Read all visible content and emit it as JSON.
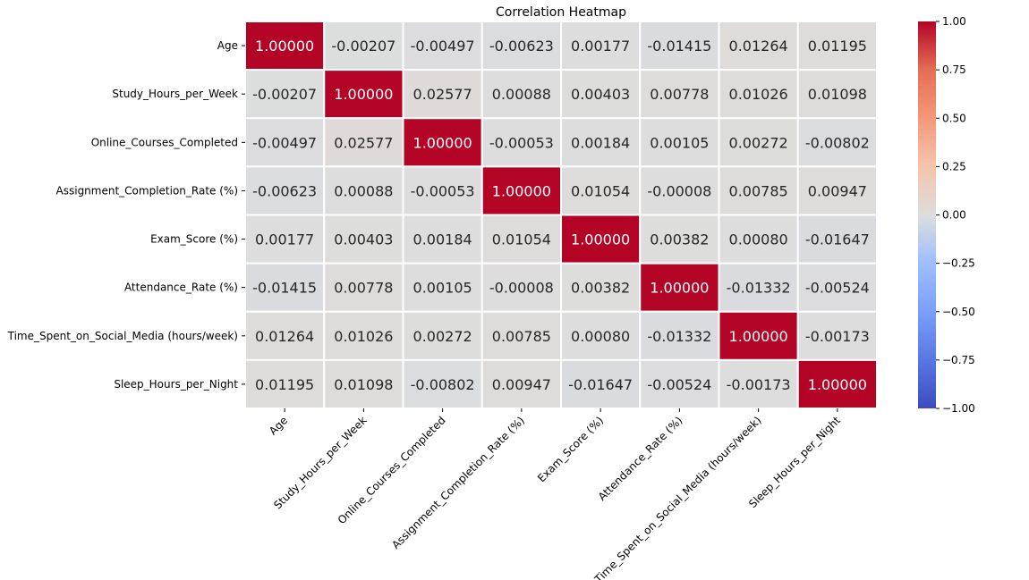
{
  "chart_data": {
    "type": "heatmap",
    "title": "Correlation Heatmap",
    "labels": [
      "Age",
      "Study_Hours_per_Week",
      "Online_Courses_Completed",
      "Assignment_Completion_Rate (%)",
      "Exam_Score (%)",
      "Attendance_Rate (%)",
      "Time_Spent_on_Social_Media (hours/week)",
      "Sleep_Hours_per_Night"
    ],
    "values": [
      [
        1.0,
        -0.00207,
        -0.00497,
        -0.00623,
        0.00177,
        -0.01415,
        0.01264,
        0.01195
      ],
      [
        -0.00207,
        1.0,
        0.02577,
        0.00088,
        0.00403,
        0.00778,
        0.01026,
        0.01098
      ],
      [
        -0.00497,
        0.02577,
        1.0,
        -0.00053,
        0.00184,
        0.00105,
        0.00272,
        -0.00802
      ],
      [
        -0.00623,
        0.00088,
        -0.00053,
        1.0,
        0.01054,
        -8e-05,
        0.00785,
        0.00947
      ],
      [
        0.00177,
        0.00403,
        0.00184,
        0.01054,
        1.0,
        0.00382,
        0.0008,
        -0.01647
      ],
      [
        -0.01415,
        0.00778,
        0.00105,
        -8e-05,
        0.00382,
        1.0,
        -0.01332,
        -0.00524
      ],
      [
        0.01264,
        0.01026,
        0.00272,
        0.00785,
        0.0008,
        -0.01332,
        1.0,
        -0.00173
      ],
      [
        0.01195,
        0.01098,
        -0.00802,
        0.00947,
        -0.01647,
        -0.00524,
        -0.00173,
        1.0
      ]
    ],
    "value_format": "5 decimals",
    "colormap": "coolwarm",
    "vmin": -1.0,
    "vmax": 1.0,
    "colorbar_ticks": [
      "1.00",
      "0.75",
      "0.50",
      "0.25",
      "0.00",
      "−0.25",
      "−0.50",
      "−0.75",
      "−1.00"
    ],
    "colorbar_tick_values": [
      1.0,
      0.75,
      0.5,
      0.25,
      0.0,
      -0.25,
      -0.5,
      -0.75,
      -1.0
    ],
    "gridlines": "white",
    "colorbar_placement": "right"
  }
}
